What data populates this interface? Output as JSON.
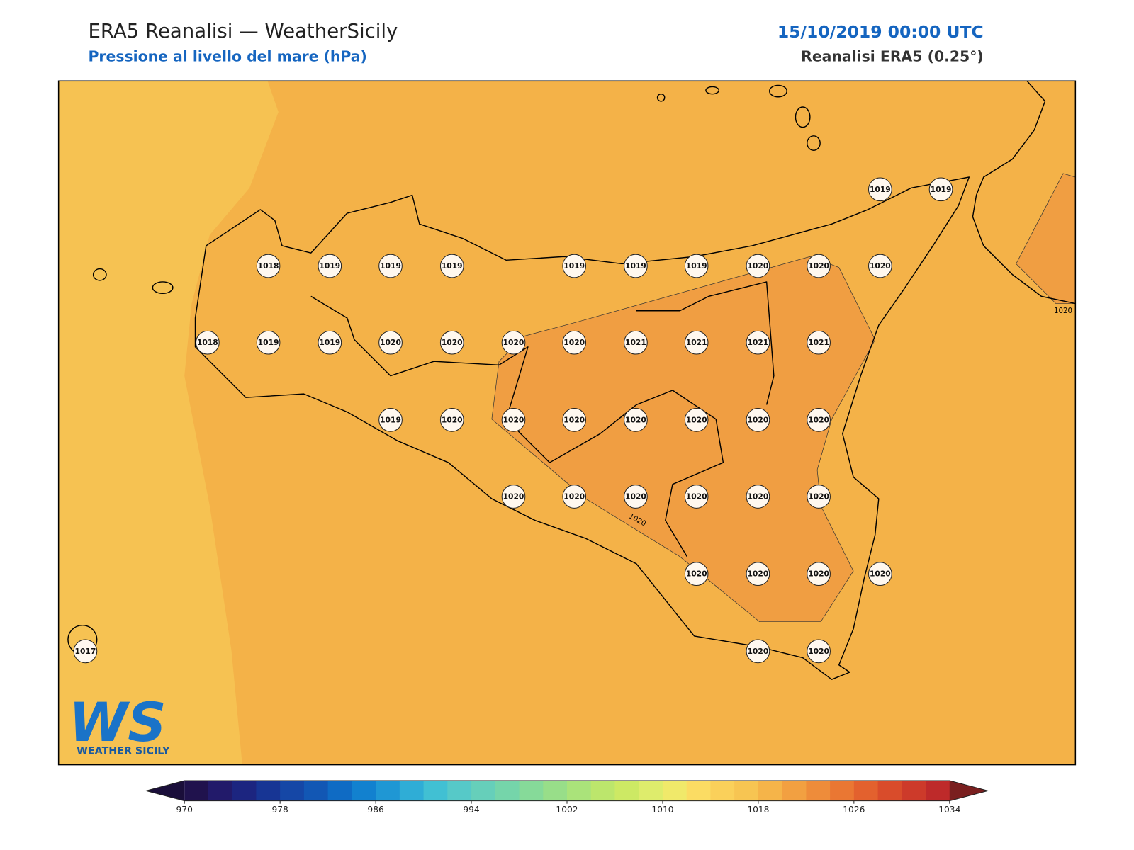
{
  "header": {
    "title": "ERA5 Reanalisi — WeatherSicily",
    "subtitle": "Pressione al livello del mare (hPa)",
    "datetime": "15/10/2019 00:00 UTC",
    "source": "Reanalisi ERA5 (0.25°)"
  },
  "map": {
    "station_values": [
      1019,
      1019,
      1018,
      1019,
      1019,
      1019,
      1019,
      1019,
      1019,
      1020,
      1020,
      1020,
      1018,
      1019,
      1019,
      1020,
      1020,
      1020,
      1020,
      1021,
      1021,
      1021,
      1021,
      1019,
      1020,
      1020,
      1020,
      1020,
      1020,
      1020,
      1020,
      1020,
      1020,
      1020,
      1020,
      1020,
      1020,
      1020,
      1020,
      1020,
      1020,
      1017,
      1020,
      1020
    ],
    "contour_labels": [
      1020,
      1020
    ],
    "logo": {
      "mark": "WS",
      "text": "WEATHER SICILY"
    }
  },
  "colorbar": {
    "ticks": [
      970,
      978,
      986,
      994,
      1002,
      1010,
      1018,
      1026,
      1034
    ],
    "colors": [
      "#20124d",
      "#221a6a",
      "#1c2580",
      "#173594",
      "#1547a6",
      "#1257b4",
      "#0f6bc4",
      "#1281cf",
      "#1f97d4",
      "#2fadd6",
      "#41c0d3",
      "#56c9c8",
      "#66cfba",
      "#75d5aa",
      "#86da99",
      "#98de89",
      "#aae37a",
      "#bce66c",
      "#cde964",
      "#deec6c",
      "#f0e96a",
      "#fbdc63",
      "#fad05a",
      "#f7c552",
      "#f5b449",
      "#f2a041",
      "#ee8c3a",
      "#ea7733",
      "#e3612e",
      "#d94c2b",
      "#cd3a2a",
      "#be2a2a"
    ],
    "under_color": "#1a0e3a",
    "over_color": "#7a1f1f"
  }
}
